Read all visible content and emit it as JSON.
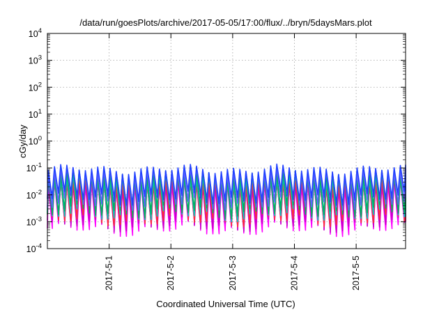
{
  "chart_data": {
    "type": "line",
    "title": "/data/run/goesPlots/archive/2017-05-05/17:00/flux/../bryn/5daysMars.plot",
    "xlabel": "Coordinated Universal Time (UTC)",
    "ylabel": "cGy/day",
    "y_scale": "log",
    "ylim_exponents": [
      -4,
      4
    ],
    "y_ticks": [
      {
        "base": "10",
        "exp": "-4",
        "value": -4
      },
      {
        "base": "10",
        "exp": "-3",
        "value": -3
      },
      {
        "base": "10",
        "exp": "-2",
        "value": -2
      },
      {
        "base": "10",
        "exp": "-1",
        "value": -1
      },
      {
        "base": "10",
        "exp": "0",
        "value": 0
      },
      {
        "base": "10",
        "exp": "1",
        "value": 1
      },
      {
        "base": "10",
        "exp": "2",
        "value": 2
      },
      {
        "base": "10",
        "exp": "3",
        "value": 3
      },
      {
        "base": "10",
        "exp": "4",
        "value": 4
      }
    ],
    "x_range_days": [
      0,
      5.8
    ],
    "x_ticks": [
      {
        "label": "2017-5-1",
        "value": 1
      },
      {
        "label": "2017-5-2",
        "value": 2
      },
      {
        "label": "2017-5-3",
        "value": 3
      },
      {
        "label": "2017-5-4",
        "value": 4
      },
      {
        "label": "2017-5-5",
        "value": 5
      }
    ],
    "grid": true,
    "oscillation_period_days": 0.1,
    "series": [
      {
        "color": "#ff00ff",
        "peak_exp": -1.6,
        "trough_exp": -3.25
      },
      {
        "color": "#c800c8",
        "peak_exp": -1.55,
        "trough_exp": -3.1
      },
      {
        "color": "#ff3030",
        "peak_exp": -1.45,
        "trough_exp": -2.9
      },
      {
        "color": "#00c8c8",
        "peak_exp": -1.35,
        "trough_exp": -2.7
      },
      {
        "color": "#00b060",
        "peak_exp": -1.25,
        "trough_exp": -2.6
      },
      {
        "color": "#6060ff",
        "peak_exp": -1.15,
        "trough_exp": -2.3
      },
      {
        "color": "#2040ff",
        "peak_exp": -1.05,
        "trough_exp": -2.1
      }
    ]
  }
}
